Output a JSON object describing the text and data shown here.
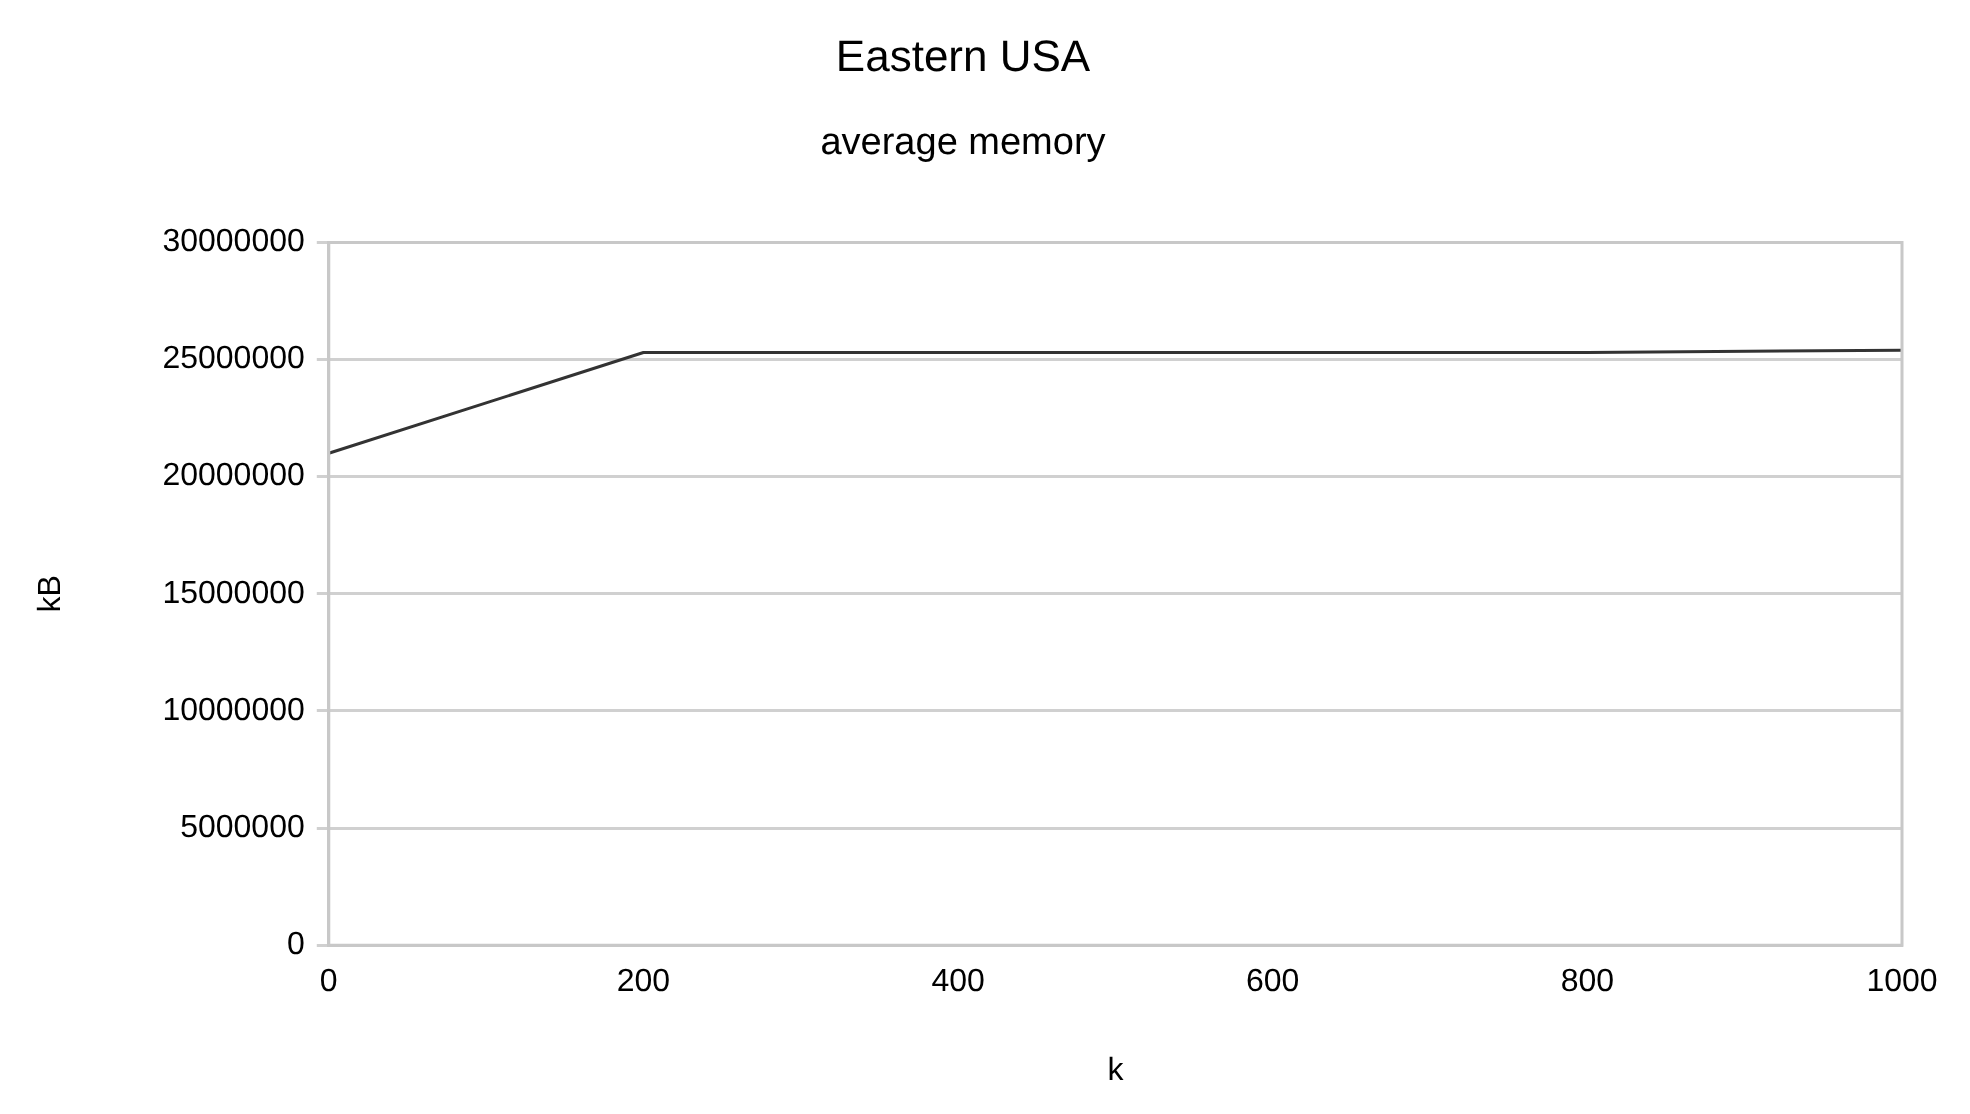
{
  "chart_data": {
    "type": "line",
    "title": "Eastern USA",
    "subtitle": "average memory",
    "xlabel": "k",
    "ylabel": "kB",
    "x": [
      0,
      200,
      400,
      600,
      800,
      1000
    ],
    "series": [
      {
        "color": "#333333",
        "values": [
          21000000,
          25300000,
          25300000,
          25300000,
          25300000,
          25400000
        ]
      }
    ],
    "xlim": [
      0,
      1000
    ],
    "xticks": [
      0,
      200,
      400,
      600,
      800,
      1000
    ],
    "ylim": [
      0,
      30000000
    ],
    "yticks": [
      0,
      5000000,
      10000000,
      15000000,
      20000000,
      25000000,
      30000000
    ],
    "grid": "y",
    "legend": false,
    "marker": "none",
    "line_style": "solid"
  }
}
